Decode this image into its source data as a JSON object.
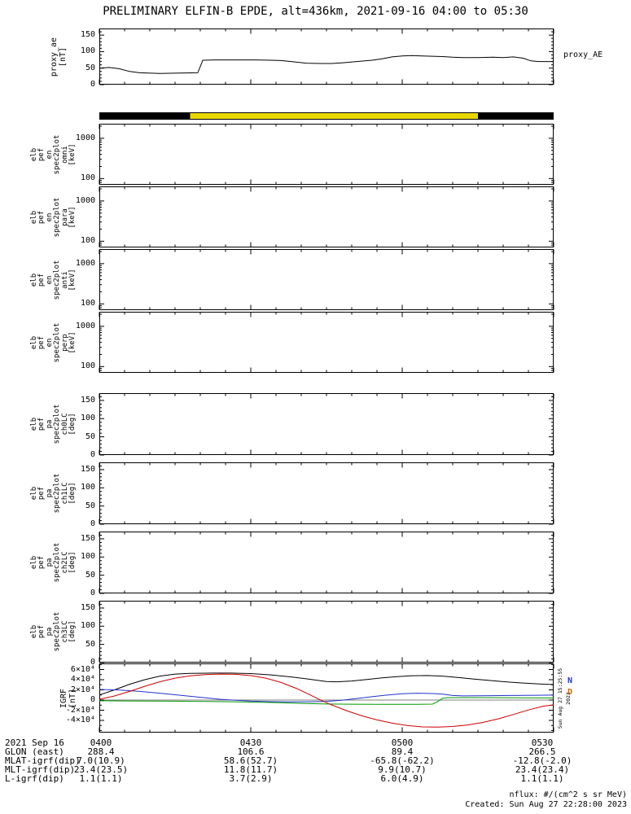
{
  "title": "PRELIMINARY ELFIN-B EPDE, alt=436km, 2021-09-16 04:00 to 05:30",
  "right_label_proxy_ae": "proxy_AE",
  "notes": {
    "units_note": "nflux: #/(cm^2 s sr MeV)",
    "created": "Created: Sun Aug 27 22:28:00 2023",
    "side_timestamp": "Sun Aug 27 15:25:55 2023"
  },
  "x_axis": {
    "date": "2021 Sep 16",
    "xlim_minutes": [
      0,
      90
    ],
    "tick_minutes": [
      0,
      30,
      60,
      90
    ],
    "tick_labels": [
      "0400",
      "0430",
      "0500",
      "0530"
    ],
    "minor_step_minutes": 5
  },
  "footer": {
    "date_label": "2021 Sep 16",
    "columns": [
      "0400",
      "0430",
      "0500",
      "0530"
    ],
    "rows": [
      {
        "label": "GLON (east)",
        "values": [
          "288.4",
          "106.6",
          "89.4",
          "266.5"
        ]
      },
      {
        "label": "MLAT-igrf(dip)",
        "values": [
          "7.0(10.9)",
          "58.6(52.7)",
          "-65.8(-62.2)",
          "-12.8(-2.0)"
        ]
      },
      {
        "label": "MLT-igrf(dip)",
        "values": [
          "23.4(23.5)",
          "11.8(11.7)",
          "9.9(10.7)",
          "23.4(23.4)"
        ]
      },
      {
        "label": "L-igrf(dip)",
        "values": [
          "1.1(1.1)",
          "3.7(2.9)",
          "6.0(4.9)",
          "1.1(1.1)"
        ]
      }
    ]
  },
  "chart_data": [
    {
      "id": "proxy_ae",
      "type": "line",
      "ylabel_lines": [
        "proxy_ae",
        "[nT]"
      ],
      "right_label": "proxy_AE",
      "ylim": [
        0,
        170
      ],
      "yticks": [
        {
          "v": 0,
          "label": "0"
        },
        {
          "v": 50,
          "label": "50"
        },
        {
          "v": 100,
          "label": "100"
        },
        {
          "v": 150,
          "label": "150"
        }
      ],
      "series": [
        {
          "name": "proxy_AE",
          "color": "#000000",
          "x": [
            0,
            2,
            4,
            6,
            8,
            12,
            16,
            19.5,
            20.5,
            23,
            27,
            31,
            34,
            36,
            38,
            41,
            44,
            46,
            48,
            51,
            54,
            56,
            58,
            60,
            62,
            64,
            66,
            68,
            70,
            72,
            75,
            78,
            80,
            82,
            84,
            85.5,
            87,
            90
          ],
          "y": [
            50,
            52,
            48,
            40,
            36,
            34,
            35,
            36,
            74,
            75,
            75,
            75,
            74,
            73,
            70,
            65,
            64,
            64,
            66,
            70,
            74,
            78,
            84,
            87,
            88,
            87,
            86,
            85,
            83,
            82,
            82,
            83,
            82,
            84,
            80,
            72,
            70,
            70
          ]
        }
      ]
    },
    {
      "id": "position_bar",
      "type": "bar-strip",
      "segments": [
        {
          "start_min": 0,
          "end_min": 18,
          "color": "#000000"
        },
        {
          "start_min": 18,
          "end_min": 75,
          "color": "#e9d800"
        },
        {
          "start_min": 75,
          "end_min": 90,
          "color": "#000000"
        }
      ]
    },
    {
      "id": "spec_omni",
      "type": "spectrogram",
      "yscale": "log",
      "ylabel_lines": [
        "elb",
        "pef",
        "en",
        "spec2plot",
        "omni",
        "[keV]"
      ],
      "ylim": [
        70,
        2300
      ],
      "yticks": [
        {
          "v": 1000,
          "label": "1000"
        },
        {
          "v": 100,
          "label": "100"
        }
      ],
      "units": "keV",
      "no_data_visible": true
    },
    {
      "id": "spec_para",
      "type": "spectrogram",
      "yscale": "log",
      "ylabel_lines": [
        "elb",
        "pef",
        "en",
        "spec2plot",
        "para",
        "[keV]"
      ],
      "ylim": [
        70,
        2300
      ],
      "yticks": [
        {
          "v": 1000,
          "label": "1000"
        },
        {
          "v": 100,
          "label": "100"
        }
      ],
      "units": "keV",
      "no_data_visible": true
    },
    {
      "id": "spec_anti",
      "type": "spectrogram",
      "yscale": "log",
      "ylabel_lines": [
        "elb",
        "pef",
        "en",
        "spec2plot",
        "anti",
        "[keV]"
      ],
      "ylim": [
        70,
        2300
      ],
      "yticks": [
        {
          "v": 1000,
          "label": "1000"
        },
        {
          "v": 100,
          "label": "100"
        }
      ],
      "units": "keV",
      "no_data_visible": true
    },
    {
      "id": "spec_perp",
      "type": "spectrogram",
      "yscale": "log",
      "ylabel_lines": [
        "elb",
        "pef",
        "en",
        "spec2plot",
        "perp",
        "[keV]"
      ],
      "ylim": [
        70,
        2300
      ],
      "yticks": [
        {
          "v": 1000,
          "label": "1000"
        },
        {
          "v": 100,
          "label": "100"
        }
      ],
      "units": "keV",
      "no_data_visible": true
    },
    {
      "id": "pa_ch0",
      "type": "spectrogram",
      "ylabel_lines": [
        "elb",
        "pef",
        "pa",
        "spec2plot",
        "ch0LC",
        "[deg]"
      ],
      "ylim": [
        0,
        170
      ],
      "yticks": [
        {
          "v": 0,
          "label": "0"
        },
        {
          "v": 50,
          "label": "50"
        },
        {
          "v": 100,
          "label": "100"
        },
        {
          "v": 150,
          "label": "150"
        }
      ],
      "units": "deg",
      "no_data_visible": true
    },
    {
      "id": "pa_ch1",
      "type": "spectrogram",
      "ylabel_lines": [
        "elb",
        "pef",
        "pa",
        "spec2plot",
        "ch1LC",
        "[deg]"
      ],
      "ylim": [
        0,
        170
      ],
      "yticks": [
        {
          "v": 0,
          "label": "0"
        },
        {
          "v": 50,
          "label": "50"
        },
        {
          "v": 100,
          "label": "100"
        },
        {
          "v": 150,
          "label": "150"
        }
      ],
      "units": "deg",
      "no_data_visible": true
    },
    {
      "id": "pa_ch2",
      "type": "spectrogram",
      "ylabel_lines": [
        "elb",
        "pef",
        "pa",
        "spec2plot",
        "ch2LC",
        "[deg]"
      ],
      "ylim": [
        0,
        170
      ],
      "yticks": [
        {
          "v": 0,
          "label": "0"
        },
        {
          "v": 50,
          "label": "50"
        },
        {
          "v": 100,
          "label": "100"
        },
        {
          "v": 150,
          "label": "150"
        }
      ],
      "units": "deg",
      "no_data_visible": true
    },
    {
      "id": "pa_ch3",
      "type": "spectrogram",
      "ylabel_lines": [
        "elb",
        "pef",
        "pa",
        "spec2plot",
        "ch3LC",
        "[deg]"
      ],
      "ylim": [
        0,
        170
      ],
      "yticks": [
        {
          "v": 0,
          "label": "0"
        },
        {
          "v": 50,
          "label": "50"
        },
        {
          "v": 100,
          "label": "100"
        },
        {
          "v": 150,
          "label": "150"
        }
      ],
      "units": "deg",
      "no_data_visible": true
    },
    {
      "id": "igrf",
      "type": "line",
      "ylabel_lines": [
        "IGRF",
        "[nT]"
      ],
      "ylim": [
        -64000,
        72000
      ],
      "zero_line": true,
      "yticks": [
        {
          "v": 60000,
          "label": "6×10⁴"
        },
        {
          "v": 40000,
          "label": "4×10⁴"
        },
        {
          "v": 20000,
          "label": "2×10⁴"
        },
        {
          "v": 0,
          "label": "0"
        },
        {
          "v": -20000,
          "label": "-2×10⁴"
        },
        {
          "v": -40000,
          "label": "-4×10⁴"
        }
      ],
      "legend": [
        {
          "label": "N",
          "color": "#2233cc"
        },
        {
          "label": "D",
          "color": "#cc6600"
        }
      ],
      "series": [
        {
          "name": "black",
          "color": "#000000",
          "x": [
            0,
            3,
            6,
            9,
            12,
            15,
            18,
            22,
            26,
            30,
            34,
            38,
            42,
            45,
            47,
            50,
            53,
            56,
            59,
            62,
            65,
            68,
            71,
            74,
            77,
            80,
            83,
            86,
            88,
            90
          ],
          "y": [
            10000,
            20000,
            31000,
            40000,
            47000,
            51000,
            52500,
            53000,
            53000,
            52000,
            49500,
            45500,
            40500,
            36500,
            35800,
            37500,
            40500,
            43500,
            46000,
            47800,
            48200,
            47000,
            44500,
            41500,
            38800,
            36200,
            34000,
            32200,
            31200,
            30600
          ]
        },
        {
          "name": "blue",
          "color": "#2233cc",
          "x": [
            0,
            4,
            8,
            12,
            16,
            20,
            24,
            27,
            30,
            34,
            38,
            42,
            45,
            48,
            51,
            54,
            57,
            60,
            63,
            66,
            68,
            70,
            72,
            75,
            78,
            81,
            84,
            87,
            90
          ],
          "y": [
            21000,
            19500,
            17000,
            13500,
            9500,
            5500,
            1500,
            -500,
            -2000,
            -3200,
            -3600,
            -3400,
            -2500,
            -500,
            3000,
            6500,
            9800,
            12300,
            13500,
            12800,
            11500,
            9000,
            8200,
            8300,
            8700,
            9000,
            9200,
            9500,
            9700
          ]
        },
        {
          "name": "green",
          "color": "#009900",
          "x": [
            0,
            5,
            10,
            15,
            20,
            25,
            30,
            35,
            40,
            45,
            50,
            55,
            60,
            63,
            66,
            67,
            68,
            69,
            72,
            76,
            80,
            84,
            88,
            90
          ],
          "y": [
            -1500,
            -1700,
            -2000,
            -2300,
            -2700,
            -3200,
            -4000,
            -5000,
            -6500,
            -7800,
            -8200,
            -8500,
            -8500,
            -8400,
            -8000,
            -3000,
            3500,
            4600,
            4800,
            4800,
            4600,
            4400,
            4100,
            4000
          ]
        },
        {
          "name": "red",
          "color": "#cc0000",
          "x": [
            0,
            3,
            6,
            9,
            12,
            15,
            18,
            21,
            24,
            27,
            30,
            33,
            36,
            39,
            42,
            44,
            46,
            49,
            52,
            55,
            58,
            61,
            64,
            67,
            70,
            73,
            76,
            79,
            82,
            85,
            88,
            90
          ],
          "y": [
            1500,
            8000,
            17000,
            27000,
            36000,
            43000,
            47500,
            50000,
            51000,
            50500,
            48000,
            43000,
            34500,
            23000,
            9000,
            -1000,
            -9500,
            -21000,
            -31000,
            -39000,
            -45500,
            -50000,
            -52800,
            -53200,
            -52000,
            -49000,
            -44000,
            -37000,
            -28500,
            -19500,
            -12000,
            -9500
          ]
        }
      ]
    }
  ]
}
